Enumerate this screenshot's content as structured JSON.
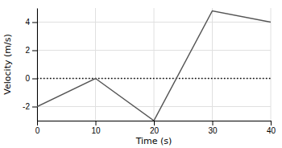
{
  "chart_data": {
    "type": "line",
    "x": [
      0,
      10,
      20,
      30,
      40
    ],
    "values": [
      -2,
      0,
      -3,
      4.8,
      4.0
    ],
    "color": "#555555",
    "x_label": "Time (s)",
    "y_label": "Velocity (m/s)",
    "xlim": [
      0,
      40
    ],
    "ylim": [
      -3,
      5
    ],
    "xticks": [
      0,
      10,
      20,
      30,
      40
    ],
    "yticks": [
      -2,
      0,
      2,
      4
    ],
    "grid": true,
    "reference_lines": [
      {
        "value": 0,
        "color": "black",
        "line_style": "dotted"
      }
    ]
  }
}
